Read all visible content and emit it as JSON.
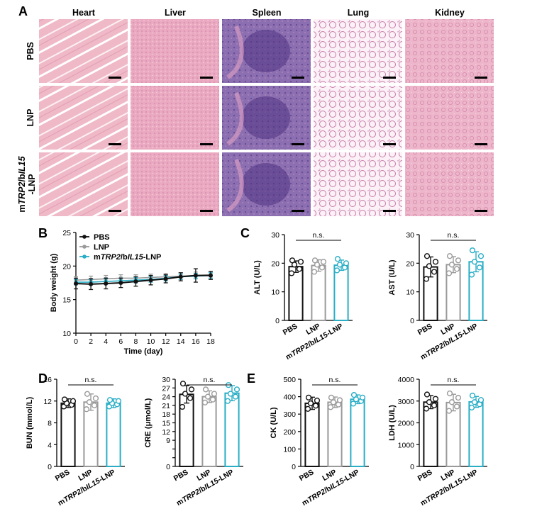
{
  "panel_letters": [
    "A",
    "B",
    "C",
    "D",
    "E"
  ],
  "histology": {
    "columns": [
      "Heart",
      "Liver",
      "Spleen",
      "Lung",
      "Kidney"
    ],
    "rows": [
      {
        "parts": [
          {
            "t": "PBS",
            "i": false
          }
        ]
      },
      {
        "parts": [
          {
            "t": "LNP",
            "i": false
          }
        ]
      },
      {
        "parts": [
          {
            "t": "m",
            "i": false
          },
          {
            "t": "TRP2",
            "i": true
          },
          {
            "t": "/b",
            "i": false
          },
          {
            "t": "IL15",
            "i": true
          }
        ],
        "parts2": [
          {
            "t": "-LNP",
            "i": false
          }
        ]
      }
    ],
    "colors": {
      "heart": "#efb9c8",
      "liver": "#eaa9c0",
      "spleen": "#8c6fb0",
      "lung": "#fbf1f7",
      "kidney": "#eeb6ca"
    }
  },
  "colors": {
    "pbs": "#111111",
    "lnp": "#9a9a9a",
    "treated": "#29aec6"
  },
  "chart_data": [
    {
      "id": "body_weight",
      "type": "line",
      "xlabel": "Time (day)",
      "ylabel": "Body weight (g)",
      "xlim": [
        0,
        18
      ],
      "ylim": [
        10,
        25
      ],
      "xticks": [
        0,
        2,
        4,
        6,
        8,
        10,
        12,
        14,
        16,
        18
      ],
      "yticks": [
        10,
        15,
        20,
        25
      ],
      "x": [
        0,
        2,
        4,
        6,
        8,
        10,
        12,
        14,
        16,
        18
      ],
      "series": [
        {
          "name": "PBS",
          "values": [
            17.4,
            17.3,
            17.4,
            17.5,
            17.7,
            17.9,
            18.1,
            18.4,
            18.6,
            18.6
          ],
          "err": [
            0.8,
            0.8,
            0.8,
            0.7,
            0.7,
            0.7,
            0.6,
            0.6,
            1.0,
            0.6
          ]
        },
        {
          "name": "LNP",
          "values": [
            17.9,
            18.0,
            18.1,
            18.2,
            18.2,
            18.3,
            18.4,
            18.5,
            18.6,
            18.7
          ],
          "err": [
            0.5,
            0.5,
            0.5,
            0.5,
            0.5,
            0.5,
            0.5,
            0.5,
            0.5,
            0.5
          ]
        },
        {
          "name_parts": [
            {
              "t": "m",
              "i": false
            },
            {
              "t": "TRP2",
              "i": true
            },
            {
              "t": "/b",
              "i": false
            },
            {
              "t": "IL15",
              "i": true
            },
            {
              "t": "-LNP",
              "i": false
            }
          ],
          "values": [
            17.6,
            17.6,
            17.7,
            17.8,
            17.9,
            18.0,
            18.2,
            18.4,
            18.5,
            18.6
          ],
          "err": [
            0.4,
            0.4,
            0.4,
            0.4,
            0.4,
            0.4,
            0.4,
            0.4,
            0.4,
            0.4
          ]
        }
      ]
    },
    {
      "id": "ALT",
      "type": "bar",
      "ylabel": "ALT (U/L)",
      "ylim": [
        0,
        30
      ],
      "yticks": [
        0,
        10,
        20,
        30
      ],
      "annotation": "n.s.",
      "categories": [
        "PBS",
        "LNP",
        "mTRP2/bIL15-LNP"
      ],
      "values": [
        18.8,
        19.2,
        19.3
      ],
      "err": [
        2.0,
        2.0,
        1.8
      ],
      "points": [
        [
          16.5,
          18.0,
          19.5,
          20.5,
          21.0
        ],
        [
          17.0,
          18.5,
          19.5,
          20.5,
          21.0
        ],
        [
          17.5,
          18.5,
          19.5,
          20.0,
          21.5
        ]
      ]
    },
    {
      "id": "AST",
      "type": "bar",
      "ylabel": "AST (U/L)",
      "ylim": [
        0,
        30
      ],
      "yticks": [
        0,
        10,
        20,
        30
      ],
      "annotation": "n.s.",
      "categories": [
        "PBS",
        "LNP",
        "mTRP2/bIL15-LNP"
      ],
      "values": [
        18.7,
        19.5,
        20.5
      ],
      "err": [
        3.5,
        2.8,
        3.5
      ],
      "points": [
        [
          14.5,
          17.0,
          19.0,
          20.5,
          22.5
        ],
        [
          16.5,
          18.0,
          19.5,
          21.0,
          22.5
        ],
        [
          16.0,
          18.5,
          20.5,
          22.5,
          24.5
        ]
      ]
    },
    {
      "id": "BUN",
      "type": "bar",
      "ylabel": "BUN (mmol/L)",
      "ylim": [
        0,
        16
      ],
      "yticks": [
        0,
        4,
        8,
        12,
        16
      ],
      "annotation": "n.s.",
      "categories": [
        "PBS",
        "LNP",
        "mTRP2/bIL15-LNP"
      ],
      "values": [
        11.6,
        11.8,
        11.6
      ],
      "err": [
        0.8,
        1.5,
        0.8
      ],
      "points": [
        [
          11.0,
          11.3,
          11.6,
          12.0,
          12.3
        ],
        [
          10.5,
          11.2,
          11.8,
          12.5,
          13.3
        ],
        [
          11.0,
          11.4,
          11.6,
          12.0,
          12.2
        ]
      ]
    },
    {
      "id": "CRE",
      "type": "bar",
      "ylabel": "CRE (μmol/L)",
      "ylim": [
        0,
        30
      ],
      "yticks": [
        0,
        3,
        6,
        9,
        12,
        15,
        18,
        21,
        24,
        27,
        30
      ],
      "ytick_labels": [
        "0",
        "",
        "",
        "9",
        "12",
        "15",
        "18",
        "21",
        "24",
        "27",
        "30"
      ],
      "annotation": "n.s.",
      "categories": [
        "PBS",
        "LNP",
        "mTRP2/bIL15-LNP"
      ],
      "values": [
        24.8,
        24.0,
        25.2
      ],
      "err": [
        3.0,
        2.0,
        2.6
      ],
      "points": [
        [
          20.5,
          23.5,
          25.0,
          26.5,
          28.5
        ],
        [
          22.0,
          23.0,
          24.0,
          25.0,
          26.5
        ],
        [
          22.5,
          24.0,
          25.0,
          26.5,
          28.0
        ]
      ]
    },
    {
      "id": "CK",
      "type": "bar",
      "ylabel": "CK (U/L)",
      "ylim": [
        0,
        500
      ],
      "yticks": [
        0,
        100,
        200,
        300,
        400,
        500
      ],
      "annotation": "n.s.",
      "categories": [
        "PBS",
        "LNP",
        "mTRP2/bIL15-LNP"
      ],
      "values": [
        362,
        368,
        385
      ],
      "err": [
        35,
        30,
        25
      ],
      "points": [
        [
          330,
          348,
          362,
          378,
          395
        ],
        [
          340,
          355,
          368,
          380,
          395
        ],
        [
          360,
          375,
          385,
          395,
          410
        ]
      ]
    },
    {
      "id": "LDH",
      "type": "bar",
      "ylabel": "LDH (U/L)",
      "ylim": [
        0,
        4000
      ],
      "yticks": [
        0,
        1000,
        2000,
        3000,
        4000
      ],
      "annotation": "n.s.",
      "categories": [
        "PBS",
        "LNP",
        "mTRP2/bIL15-LNP"
      ],
      "values": [
        2950,
        2930,
        2960
      ],
      "err": [
        300,
        380,
        250
      ],
      "points": [
        [
          2650,
          2800,
          2950,
          3100,
          3300
        ],
        [
          2550,
          2750,
          2950,
          3150,
          3350
        ],
        [
          2700,
          2850,
          2950,
          3050,
          3250
        ]
      ]
    }
  ]
}
